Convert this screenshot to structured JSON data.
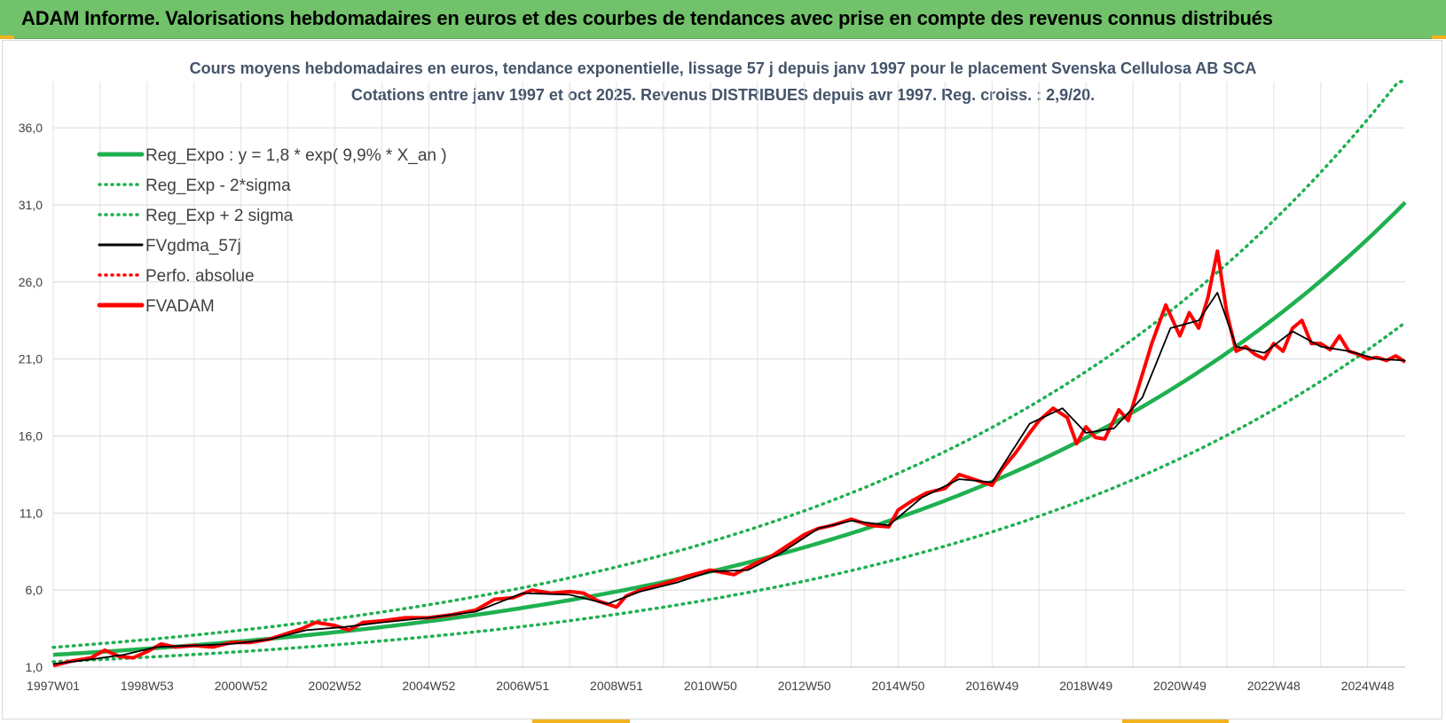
{
  "header": {
    "title": "ADAM Informe. Valorisations hebdomadaires en euros et des courbes de tendances avec prise en compte des revenus connus distribués"
  },
  "colors": {
    "header_bg": "#71c26a",
    "trend": "#1fb050",
    "black_series": "#000000",
    "red_series": "#ff0000",
    "accent_corners": "#f2b21b"
  },
  "chart_data": {
    "type": "line",
    "title_line1": "Cours moyens hebdomadaires en euros, tendance exponentielle, lissage 57 j depuis janv 1997 pour le placement Svenska Cellulosa AB SCA",
    "title_line2": "Cotations entre janv 1997 et oct 2025. Revenus DISTRIBUES depuis avr 1997. Reg. croiss. : 2,9/20.",
    "ylim": [
      1.0,
      39.0
    ],
    "yticks": [
      "1,0",
      "6,0",
      "11,0",
      "16,0",
      "21,0",
      "26,0",
      "31,0",
      "36,0"
    ],
    "ytick_values": [
      1,
      6,
      11,
      16,
      21,
      26,
      31,
      36
    ],
    "xlim": [
      1997.0,
      2025.8
    ],
    "xticks": [
      "1997W01",
      "1998W53",
      "2000W52",
      "2002W52",
      "2004W52",
      "2006W51",
      "2008W51",
      "2010W50",
      "2012W50",
      "2014W50",
      "2016W49",
      "2018W49",
      "2020W49",
      "2022W48",
      "2024W48"
    ],
    "xtick_values": [
      1997.0,
      1999.0,
      2001.0,
      2003.0,
      2005.0,
      2007.0,
      2009.0,
      2011.0,
      2013.0,
      2015.0,
      2017.0,
      2019.0,
      2021.0,
      2023.0,
      2025.0
    ],
    "grid": true,
    "legend_position": "top-left",
    "legend": [
      {
        "label": "Reg_Expo : y = 1,8 * exp( 9,9% *  X_an )",
        "color": "#1fb050",
        "style": "solid"
      },
      {
        "label": "Reg_Exp - 2*sigma",
        "color": "#1fb050",
        "style": "dotted"
      },
      {
        "label": "Reg_Exp + 2 sigma",
        "color": "#1fb050",
        "style": "dotted"
      },
      {
        "label": "FVgdma_57j",
        "color": "#000000",
        "style": "solid"
      },
      {
        "label": "Perfo. absolue",
        "color": "#ff0000",
        "style": "dotted"
      },
      {
        "label": "FVADAM",
        "color": "#ff0000",
        "style": "solid"
      }
    ],
    "trend": {
      "a": 1.8,
      "b": 0.099,
      "x0": 1997.0,
      "low_factor": 0.75,
      "high_factor": 1.27
    },
    "series_fvadam": {
      "x": [
        1997.0,
        1997.4,
        1997.8,
        1998.1,
        1998.4,
        1998.7,
        1999.0,
        1999.3,
        1999.6,
        2000.0,
        2000.4,
        2000.8,
        2001.2,
        2001.6,
        2002.0,
        2002.3,
        2002.6,
        2003.0,
        2003.3,
        2003.6,
        2004.0,
        2004.5,
        2005.0,
        2005.5,
        2006.0,
        2006.4,
        2006.8,
        2007.2,
        2007.6,
        2008.0,
        2008.3,
        2008.6,
        2009.0,
        2009.2,
        2009.5,
        2010.0,
        2010.5,
        2011.0,
        2011.5,
        2012.0,
        2012.3,
        2012.6,
        2013.0,
        2013.3,
        2013.6,
        2014.0,
        2014.4,
        2014.8,
        2015.0,
        2015.3,
        2015.6,
        2016.0,
        2016.3,
        2016.6,
        2017.0,
        2017.2,
        2017.5,
        2017.8,
        2018.0,
        2018.3,
        2018.6,
        2018.8,
        2019.0,
        2019.2,
        2019.4,
        2019.7,
        2019.9,
        2020.1,
        2020.4,
        2020.7,
        2021.0,
        2021.2,
        2021.4,
        2021.6,
        2021.8,
        2022.0,
        2022.2,
        2022.4,
        2022.6,
        2022.8,
        2023.0,
        2023.2,
        2023.4,
        2023.6,
        2023.8,
        2024.0,
        2024.2,
        2024.4,
        2024.6,
        2024.8,
        2025.0,
        2025.2,
        2025.4,
        2025.6,
        2025.8
      ],
      "y": [
        1.1,
        1.4,
        1.6,
        2.1,
        1.7,
        1.6,
        2.0,
        2.5,
        2.3,
        2.4,
        2.3,
        2.6,
        2.6,
        2.8,
        3.2,
        3.5,
        3.9,
        3.7,
        3.4,
        3.9,
        4.0,
        4.2,
        4.2,
        4.4,
        4.7,
        5.4,
        5.5,
        6.0,
        5.8,
        5.9,
        5.8,
        5.3,
        4.9,
        5.6,
        6.0,
        6.4,
        6.9,
        7.3,
        7.0,
        7.8,
        8.2,
        8.8,
        9.6,
        10.0,
        10.2,
        10.6,
        10.2,
        10.1,
        11.2,
        11.8,
        12.3,
        12.6,
        13.5,
        13.2,
        12.8,
        13.8,
        14.9,
        16.2,
        17.0,
        17.8,
        17.2,
        15.5,
        16.6,
        15.9,
        15.8,
        17.7,
        17.0,
        19.0,
        22.0,
        24.5,
        22.5,
        24.0,
        23.0,
        25.0,
        28.0,
        24.0,
        21.5,
        21.8,
        21.3,
        21.0,
        22.0,
        21.5,
        23.0,
        23.5,
        22.0,
        22.0,
        21.6,
        22.5,
        21.5,
        21.3,
        21.0,
        21.1,
        20.9,
        21.2,
        20.8
      ]
    },
    "series_fvgdma_57j": {
      "x": [
        1997.0,
        1997.8,
        1998.5,
        1999.2,
        2000.0,
        2000.8,
        2001.6,
        2002.4,
        2003.2,
        2004.0,
        2005.0,
        2006.0,
        2007.0,
        2008.0,
        2008.8,
        2009.5,
        2010.3,
        2011.0,
        2011.8,
        2012.5,
        2013.3,
        2014.0,
        2014.8,
        2015.5,
        2016.3,
        2017.0,
        2017.8,
        2018.5,
        2019.0,
        2019.6,
        2020.2,
        2020.8,
        2021.4,
        2021.8,
        2022.2,
        2022.8,
        2023.4,
        2024.0,
        2024.6,
        2025.2,
        2025.8
      ],
      "y": [
        1.2,
        1.5,
        1.8,
        2.3,
        2.4,
        2.5,
        2.8,
        3.4,
        3.6,
        3.9,
        4.2,
        4.6,
        5.8,
        5.7,
        5.1,
        5.9,
        6.5,
        7.2,
        7.3,
        8.4,
        10.0,
        10.5,
        10.2,
        12.0,
        13.2,
        13.0,
        16.8,
        17.8,
        16.2,
        16.5,
        18.5,
        23.0,
        23.5,
        25.3,
        21.8,
        21.4,
        22.8,
        21.8,
        21.5,
        21.0,
        20.9
      ]
    }
  }
}
